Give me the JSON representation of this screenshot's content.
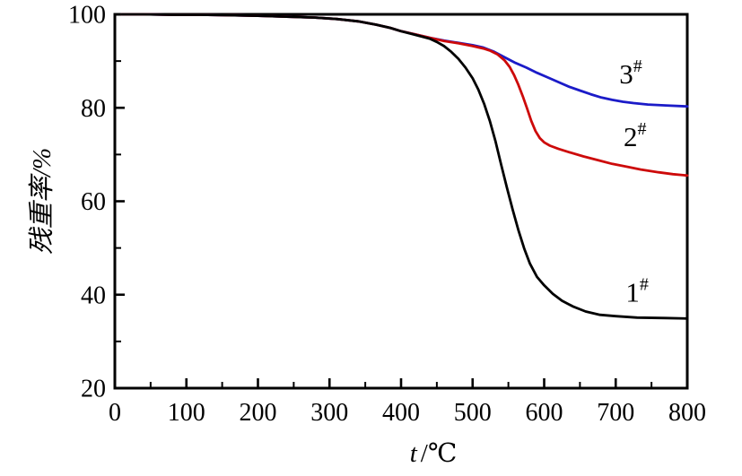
{
  "figure": {
    "kind": "TGA thermogram",
    "background": "#ffffff"
  },
  "chart_data": {
    "type": "line",
    "title": "",
    "xlabel": "t/℃",
    "xlabel_parts": {
      "var": "t",
      "sep": "/",
      "unit": "℃"
    },
    "ylabel": "残重率/%",
    "xlim": [
      0,
      800
    ],
    "ylim": [
      20,
      100
    ],
    "x_major_ticks": [
      0,
      100,
      200,
      300,
      400,
      500,
      600,
      700,
      800
    ],
    "x_minor_ticks": [
      50,
      150,
      250,
      350,
      450,
      550,
      650,
      750
    ],
    "y_major_ticks": [
      20,
      40,
      60,
      80,
      100
    ],
    "y_minor_ticks": [
      30,
      50,
      70,
      90
    ],
    "grid": false,
    "frame": "full-box",
    "legend_position": "inline-labels",
    "axis_color": "#000000",
    "series": [
      {
        "name": "3#",
        "label_base": "3",
        "label_sup": "#",
        "color": "#1b1bc8",
        "label_at": [
          721,
          87.3
        ],
        "points": [
          [
            10,
            100
          ],
          [
            40,
            100
          ],
          [
            80,
            99.9
          ],
          [
            120,
            99.9
          ],
          [
            160,
            99.8
          ],
          [
            200,
            99.7
          ],
          [
            240,
            99.5
          ],
          [
            280,
            99.3
          ],
          [
            310,
            99.0
          ],
          [
            340,
            98.5
          ],
          [
            365,
            97.8
          ],
          [
            385,
            97.1
          ],
          [
            400,
            96.4
          ],
          [
            420,
            95.7
          ],
          [
            440,
            95.0
          ],
          [
            460,
            94.4
          ],
          [
            480,
            93.9
          ],
          [
            500,
            93.4
          ],
          [
            515,
            92.9
          ],
          [
            530,
            92.0
          ],
          [
            545,
            90.8
          ],
          [
            560,
            89.6
          ],
          [
            575,
            88.6
          ],
          [
            590,
            87.5
          ],
          [
            605,
            86.5
          ],
          [
            620,
            85.5
          ],
          [
            635,
            84.5
          ],
          [
            650,
            83.7
          ],
          [
            665,
            82.9
          ],
          [
            680,
            82.2
          ],
          [
            695,
            81.7
          ],
          [
            710,
            81.3
          ],
          [
            725,
            81.0
          ],
          [
            745,
            80.7
          ],
          [
            770,
            80.5
          ],
          [
            800,
            80.3
          ]
        ]
      },
      {
        "name": "2#",
        "label_base": "2",
        "label_sup": "#",
        "color": "#cd0a0a",
        "label_at": [
          727,
          73.9
        ],
        "points": [
          [
            10,
            100
          ],
          [
            40,
            100
          ],
          [
            80,
            99.9
          ],
          [
            120,
            99.9
          ],
          [
            160,
            99.8
          ],
          [
            200,
            99.7
          ],
          [
            240,
            99.5
          ],
          [
            280,
            99.3
          ],
          [
            310,
            99.0
          ],
          [
            340,
            98.5
          ],
          [
            365,
            97.8
          ],
          [
            385,
            97.1
          ],
          [
            400,
            96.4
          ],
          [
            420,
            95.7
          ],
          [
            440,
            95.0
          ],
          [
            460,
            94.3
          ],
          [
            480,
            93.8
          ],
          [
            500,
            93.2
          ],
          [
            515,
            92.7
          ],
          [
            525,
            92.2
          ],
          [
            535,
            91.4
          ],
          [
            545,
            90.1
          ],
          [
            552,
            88.7
          ],
          [
            558,
            87.0
          ],
          [
            564,
            84.9
          ],
          [
            570,
            82.5
          ],
          [
            576,
            79.9
          ],
          [
            582,
            77.2
          ],
          [
            588,
            75.0
          ],
          [
            594,
            73.5
          ],
          [
            600,
            72.6
          ],
          [
            608,
            71.9
          ],
          [
            620,
            71.2
          ],
          [
            635,
            70.5
          ],
          [
            655,
            69.6
          ],
          [
            675,
            68.8
          ],
          [
            695,
            68.0
          ],
          [
            715,
            67.4
          ],
          [
            735,
            66.8
          ],
          [
            760,
            66.2
          ],
          [
            780,
            65.8
          ],
          [
            800,
            65.5
          ]
        ]
      },
      {
        "name": "1#",
        "label_base": "1",
        "label_sup": "#",
        "color": "#000000",
        "label_at": [
          730,
          40.6
        ],
        "points": [
          [
            10,
            100
          ],
          [
            40,
            100
          ],
          [
            80,
            99.9
          ],
          [
            120,
            99.9
          ],
          [
            160,
            99.8
          ],
          [
            200,
            99.7
          ],
          [
            240,
            99.5
          ],
          [
            280,
            99.3
          ],
          [
            310,
            99.0
          ],
          [
            340,
            98.5
          ],
          [
            365,
            97.8
          ],
          [
            385,
            97.1
          ],
          [
            400,
            96.4
          ],
          [
            415,
            95.8
          ],
          [
            430,
            95.2
          ],
          [
            440,
            94.8
          ],
          [
            450,
            94.1
          ],
          [
            460,
            93.2
          ],
          [
            470,
            92.0
          ],
          [
            480,
            90.5
          ],
          [
            490,
            88.6
          ],
          [
            500,
            86.3
          ],
          [
            508,
            83.9
          ],
          [
            516,
            80.9
          ],
          [
            524,
            77.2
          ],
          [
            532,
            72.8
          ],
          [
            540,
            67.8
          ],
          [
            548,
            62.9
          ],
          [
            556,
            58.2
          ],
          [
            564,
            53.8
          ],
          [
            572,
            49.9
          ],
          [
            580,
            46.7
          ],
          [
            590,
            43.8
          ],
          [
            600,
            42.0
          ],
          [
            612,
            40.2
          ],
          [
            625,
            38.7
          ],
          [
            640,
            37.5
          ],
          [
            658,
            36.4
          ],
          [
            678,
            35.7
          ],
          [
            700,
            35.4
          ],
          [
            730,
            35.1
          ],
          [
            770,
            35.0
          ],
          [
            800,
            34.9
          ]
        ]
      }
    ]
  }
}
